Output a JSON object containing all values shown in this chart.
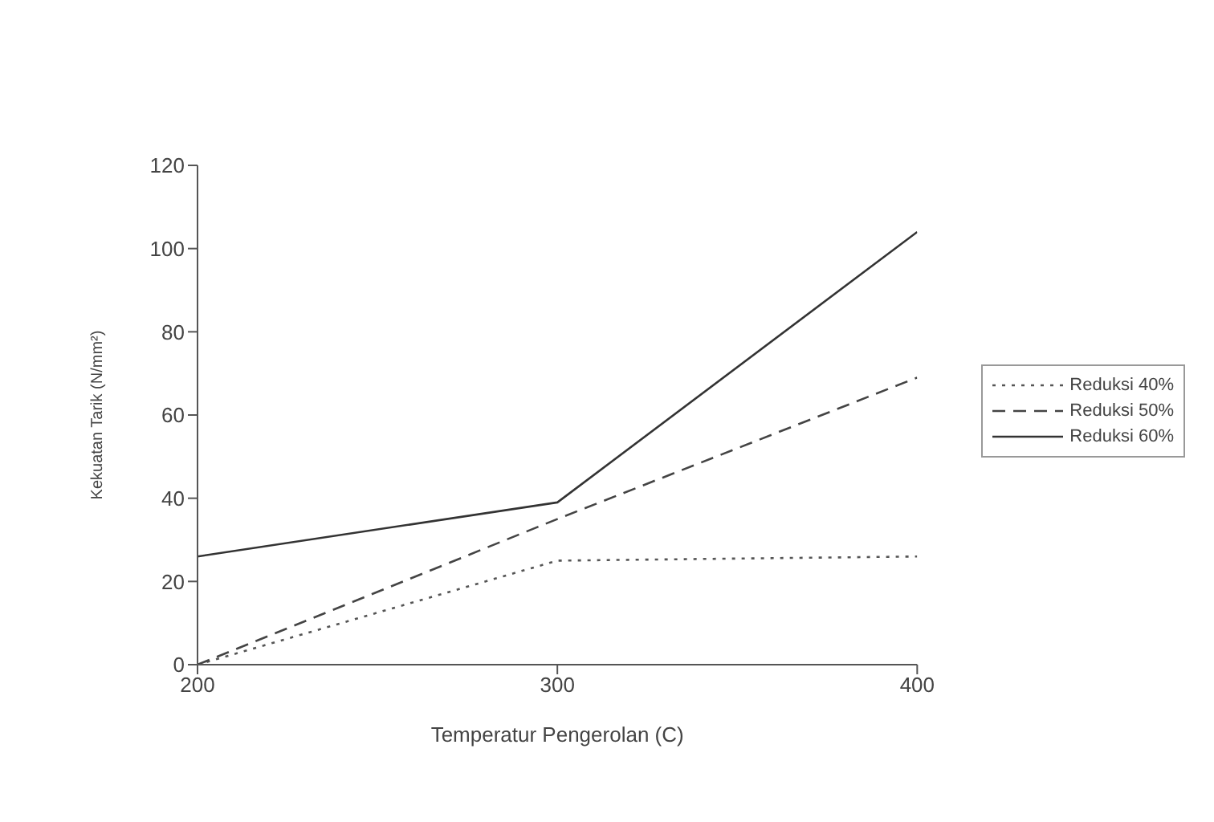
{
  "chart_data": {
    "type": "line",
    "xlabel": "Temperatur Pengerolan (C)",
    "ylabel": "Kekuatan Tarik (N/mm²)",
    "x": [
      200,
      300,
      400
    ],
    "xlim": [
      200,
      400
    ],
    "xticks": [
      200,
      300,
      400
    ],
    "ylim": [
      0,
      120
    ],
    "yticks": [
      0,
      20,
      40,
      60,
      80,
      100,
      120
    ],
    "grid": false,
    "legend": "right",
    "marker": "none",
    "series": [
      {
        "name": "Reduksi 40%",
        "color": "#555555",
        "line_style": "dotted",
        "values": [
          0,
          25,
          26
        ]
      },
      {
        "name": "Reduksi 50%",
        "color": "#444444",
        "line_style": "dashed",
        "values": [
          0,
          35,
          69
        ]
      },
      {
        "name": "Reduksi 60%",
        "color": "#333333",
        "line_style": "solid",
        "values": [
          26,
          39,
          104
        ]
      }
    ]
  }
}
